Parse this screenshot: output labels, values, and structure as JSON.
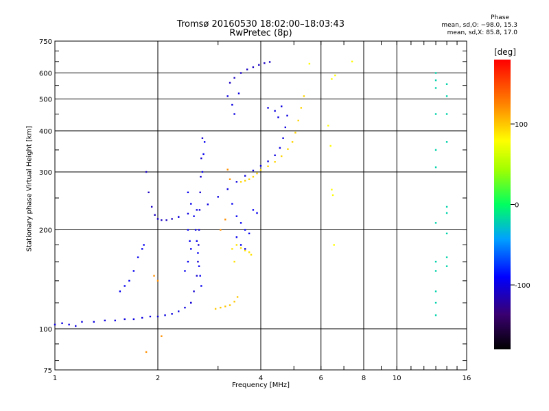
{
  "title": "Tromsø 20160530 18:02:00–18:03:43",
  "subtitle": "RwPretec (8p)",
  "phase_stats": {
    "heading": "Phase",
    "o_mode": "mean, sd,O: −98.0, 15.3",
    "x_mode": "mean, sd,X:  85.8, 17.0"
  },
  "chart_data": {
    "type": "scatter",
    "title": "Tromsø 20160530 18:02:00–18:03:43",
    "subtitle": "RwPretec (8p)",
    "xlabel": "Frequency [MHz]",
    "ylabel": "Stationary phase Virtual Height [km]",
    "xscale": "log",
    "yscale": "log",
    "xlim": [
      1,
      16
    ],
    "ylim": [
      75,
      750
    ],
    "xticks": [
      1,
      2,
      4,
      6,
      8,
      10,
      16
    ],
    "xtick_labels": [
      "1",
      "2",
      "4",
      "6",
      "8",
      "10",
      "16"
    ],
    "yticks": [
      75,
      100,
      200,
      300,
      400,
      500,
      600,
      750
    ],
    "ytick_labels": [
      "75",
      "100",
      "200",
      "300",
      "400",
      "500",
      "600",
      "750"
    ],
    "grid": true,
    "colorbar": {
      "label": "[deg]",
      "range": [
        -180,
        180
      ],
      "ticks": [
        100,
        0,
        -100
      ],
      "tick_labels": [
        "100",
        "0",
        "-100"
      ]
    },
    "series": [
      {
        "key": "e-layer-trace",
        "phase": -100,
        "points": [
          [
            1.0,
            103
          ],
          [
            1.05,
            104
          ],
          [
            1.1,
            103
          ],
          [
            1.15,
            102
          ],
          [
            1.2,
            105
          ],
          [
            1.3,
            105
          ],
          [
            1.4,
            106
          ],
          [
            1.5,
            106
          ],
          [
            1.6,
            107
          ],
          [
            1.7,
            107
          ],
          [
            1.8,
            108
          ],
          [
            1.9,
            109
          ],
          [
            2.0,
            109
          ],
          [
            2.1,
            110
          ],
          [
            2.2,
            111
          ],
          [
            2.3,
            113
          ],
          [
            2.4,
            116
          ],
          [
            2.5,
            120
          ]
        ]
      },
      {
        "key": "e-layer-rise",
        "phase": -105,
        "points": [
          [
            2.5,
            120
          ],
          [
            2.55,
            130
          ],
          [
            2.6,
            145
          ],
          [
            2.62,
            160
          ],
          [
            2.63,
            180
          ],
          [
            2.64,
            200
          ],
          [
            2.65,
            230
          ],
          [
            2.66,
            260
          ],
          [
            2.67,
            290
          ],
          [
            2.68,
            330
          ],
          [
            2.7,
            380
          ]
        ]
      },
      {
        "key": "f1-cusp",
        "phase": -110,
        "points": [
          [
            1.85,
            300
          ],
          [
            1.88,
            260
          ],
          [
            1.92,
            235
          ],
          [
            1.96,
            222
          ],
          [
            2.0,
            216
          ],
          [
            2.05,
            214
          ],
          [
            2.12,
            214
          ],
          [
            2.2,
            216
          ],
          [
            2.3,
            219
          ]
        ]
      },
      {
        "key": "f-layer-main-trace",
        "phase": -100,
        "points": [
          [
            2.3,
            219
          ],
          [
            2.45,
            224
          ],
          [
            2.6,
            230
          ],
          [
            2.8,
            239
          ],
          [
            3.0,
            252
          ],
          [
            3.2,
            266
          ],
          [
            3.4,
            280
          ],
          [
            3.6,
            292
          ],
          [
            3.8,
            303
          ],
          [
            4.0,
            313
          ],
          [
            4.2,
            323
          ],
          [
            4.4,
            337
          ],
          [
            4.55,
            355
          ],
          [
            4.65,
            380
          ],
          [
            4.72,
            410
          ],
          [
            4.78,
            445
          ]
        ]
      },
      {
        "key": "spread-f-cloud",
        "phase": -95,
        "points": [
          [
            2.45,
            260
          ],
          [
            2.5,
            240
          ],
          [
            2.55,
            220
          ],
          [
            2.58,
            200
          ],
          [
            2.6,
            185
          ],
          [
            2.62,
            170
          ],
          [
            2.64,
            155
          ],
          [
            2.66,
            145
          ],
          [
            2.68,
            135
          ],
          [
            2.5,
            175
          ],
          [
            2.45,
            160
          ],
          [
            2.4,
            150
          ],
          [
            2.7,
            300
          ],
          [
            2.72,
            340
          ],
          [
            2.74,
            370
          ],
          [
            2.45,
            200
          ],
          [
            2.48,
            185
          ]
        ]
      },
      {
        "key": "upper-f-trace",
        "phase": -110,
        "points": [
          [
            3.25,
            560
          ],
          [
            3.35,
            580
          ],
          [
            3.5,
            600
          ],
          [
            3.65,
            615
          ],
          [
            3.8,
            625
          ],
          [
            3.95,
            635
          ],
          [
            4.1,
            643
          ],
          [
            4.25,
            648
          ]
        ]
      },
      {
        "key": "upper-f-cluster",
        "phase": -100,
        "points": [
          [
            3.2,
            510
          ],
          [
            3.3,
            480
          ],
          [
            3.35,
            450
          ],
          [
            3.45,
            520
          ],
          [
            4.2,
            470
          ],
          [
            4.4,
            460
          ],
          [
            4.6,
            475
          ],
          [
            4.5,
            440
          ]
        ]
      },
      {
        "key": "mid-echo-cluster",
        "phase": -95,
        "points": [
          [
            3.3,
            240
          ],
          [
            3.4,
            220
          ],
          [
            3.5,
            210
          ],
          [
            3.6,
            200
          ],
          [
            3.7,
            195
          ],
          [
            3.4,
            190
          ],
          [
            3.5,
            180
          ],
          [
            3.6,
            175
          ],
          [
            3.8,
            230
          ],
          [
            3.9,
            225
          ]
        ]
      },
      {
        "key": "low-f-patch",
        "phase": -95,
        "points": [
          [
            1.55,
            130
          ],
          [
            1.6,
            135
          ],
          [
            1.65,
            140
          ],
          [
            1.7,
            150
          ],
          [
            1.75,
            165
          ],
          [
            1.8,
            175
          ],
          [
            1.82,
            180
          ]
        ]
      },
      {
        "key": "x-mode-f-trace",
        "phase": 95,
        "points": [
          [
            3.5,
            280
          ],
          [
            3.6,
            282
          ],
          [
            3.7,
            285
          ],
          [
            3.8,
            290
          ],
          [
            3.9,
            297
          ],
          [
            4.0,
            304
          ],
          [
            4.2,
            312
          ],
          [
            4.4,
            322
          ],
          [
            4.6,
            335
          ],
          [
            4.8,
            352
          ],
          [
            4.95,
            370
          ],
          [
            5.05,
            395
          ],
          [
            5.15,
            430
          ],
          [
            5.25,
            470
          ],
          [
            5.35,
            510
          ]
        ]
      },
      {
        "key": "x-mode-low-trace",
        "phase": 100,
        "points": [
          [
            2.95,
            115
          ],
          [
            3.05,
            116
          ],
          [
            3.15,
            117
          ],
          [
            3.25,
            118
          ],
          [
            3.35,
            121
          ],
          [
            3.42,
            125
          ]
        ]
      },
      {
        "key": "x-mode-mid-cluster",
        "phase": 90,
        "points": [
          [
            3.3,
            175
          ],
          [
            3.4,
            180
          ],
          [
            3.5,
            176
          ],
          [
            3.6,
            173
          ],
          [
            3.7,
            171
          ],
          [
            3.75,
            168
          ],
          [
            3.35,
            160
          ]
        ]
      },
      {
        "key": "sparse-column-6mhz",
        "phase": 80,
        "points": [
          [
            6.3,
            415
          ],
          [
            6.4,
            360
          ],
          [
            6.45,
            265
          ],
          [
            6.5,
            255
          ],
          [
            6.55,
            180
          ],
          [
            6.45,
            575
          ],
          [
            6.6,
            590
          ],
          [
            7.4,
            650
          ],
          [
            5.55,
            640
          ]
        ]
      },
      {
        "key": "sparse-column-13mhz",
        "phase": -20,
        "points": [
          [
            13.0,
            600
          ],
          [
            13.0,
            570
          ],
          [
            13.0,
            540
          ],
          [
            13.0,
            450
          ],
          [
            13.0,
            350
          ],
          [
            13.0,
            310
          ],
          [
            13.0,
            210
          ],
          [
            13.0,
            160
          ],
          [
            13.0,
            150
          ],
          [
            13.0,
            130
          ],
          [
            13.0,
            120
          ],
          [
            13.0,
            110
          ],
          [
            14.0,
            555
          ],
          [
            14.0,
            510
          ],
          [
            14.0,
            450
          ],
          [
            14.0,
            370
          ],
          [
            14.0,
            235
          ],
          [
            14.0,
            225
          ],
          [
            14.0,
            195
          ],
          [
            14.0,
            165
          ],
          [
            14.0,
            155
          ]
        ]
      },
      {
        "key": "isolated-echoes",
        "phase": 120,
        "points": [
          [
            1.85,
            85
          ],
          [
            2.05,
            95
          ],
          [
            2.0,
            140
          ],
          [
            1.95,
            145
          ],
          [
            3.2,
            305
          ],
          [
            3.25,
            285
          ],
          [
            3.05,
            200
          ],
          [
            3.15,
            215
          ]
        ]
      }
    ]
  }
}
